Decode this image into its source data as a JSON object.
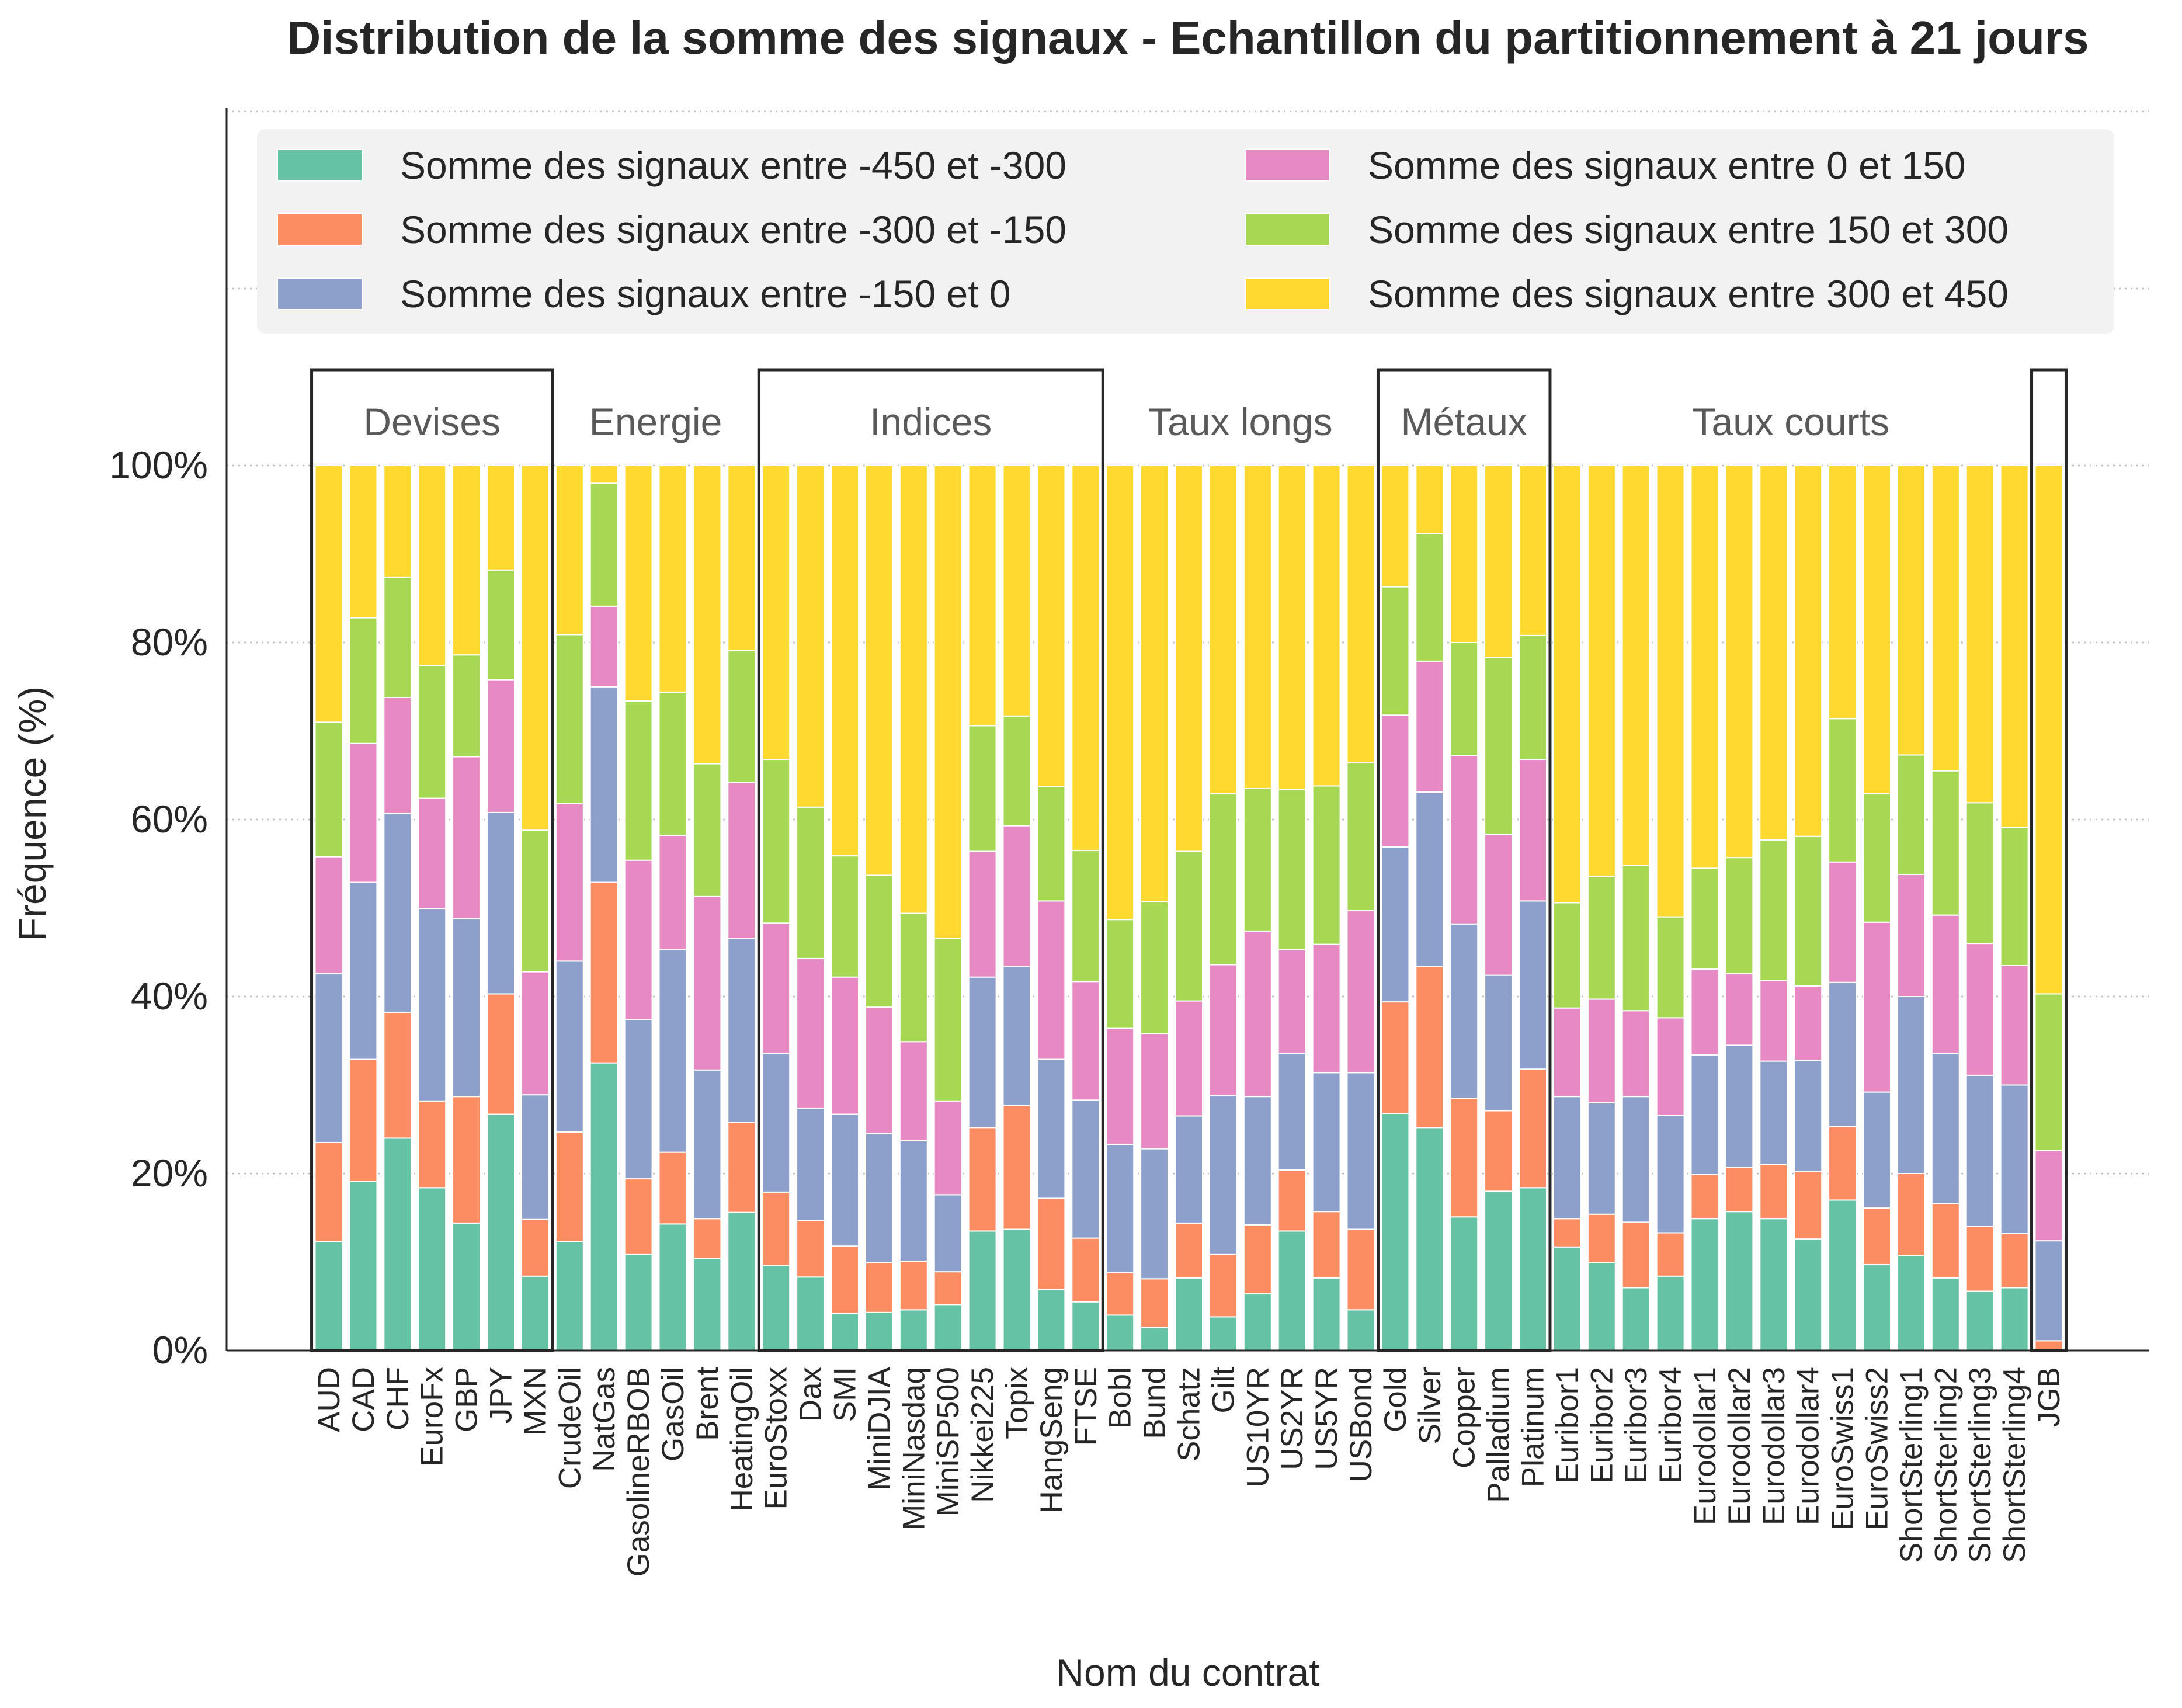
{
  "chart_data": {
    "type": "bar",
    "stacked": true,
    "title": "Distribution de la somme des signaux - Echantillon du partitionnement à 21 jours",
    "xlabel": "Nom du contrat",
    "ylabel": "Fréquence (%)",
    "ylim": [
      0,
      100
    ],
    "yticks": [
      "0%",
      "20%",
      "40%",
      "60%",
      "80%",
      "100%"
    ],
    "grid": "horizontal dotted",
    "legend": {
      "placement": "top",
      "columns": 2
    },
    "categories": [
      "AUD",
      "CAD",
      "CHF",
      "EuroFx",
      "GBP",
      "JPY",
      "MXN",
      "CrudeOil",
      "NatGas",
      "GasolineRBOB",
      "GasOil",
      "Brent",
      "HeatingOil",
      "EuroStoxx",
      "Dax",
      "SMI",
      "MiniDJIA",
      "MiniNasdaq",
      "MiniSP500",
      "Nikkei225",
      "Topix",
      "HangSeng",
      "FTSE",
      "Bobl",
      "Bund",
      "Schatz",
      "Gilt",
      "US10YR",
      "US2YR",
      "US5YR",
      "USBond",
      "Gold",
      "Silver",
      "Copper",
      "Palladium",
      "Platinum",
      "Euribor1",
      "Euribor2",
      "Euribor3",
      "Euribor4",
      "Eurodollar1",
      "Eurodollar2",
      "Eurodollar3",
      "Eurodollar4",
      "EuroSwiss1",
      "EuroSwiss2",
      "ShortSterling1",
      "ShortSterling2",
      "ShortSterling3",
      "ShortSterling4",
      "JGB"
    ],
    "groups": [
      {
        "label": "Devises",
        "start": 0,
        "end": 6,
        "boxed": true
      },
      {
        "label": "Energie",
        "start": 7,
        "end": 12,
        "boxed": false
      },
      {
        "label": "Indices",
        "start": 13,
        "end": 22,
        "boxed": true
      },
      {
        "label": "Taux longs",
        "start": 23,
        "end": 30,
        "boxed": false
      },
      {
        "label": "Métaux",
        "start": 31,
        "end": 35,
        "boxed": true
      },
      {
        "label": "Taux courts",
        "start": 36,
        "end": 49,
        "boxed": false
      },
      {
        "label": "",
        "start": 50,
        "end": 50,
        "boxed": true
      }
    ],
    "series": [
      {
        "name": "Somme des signaux entre -450 et -300",
        "color": "#66c2a5",
        "values": [
          12.3,
          19.1,
          24.0,
          18.4,
          14.4,
          26.7,
          8.4,
          12.3,
          32.5,
          10.9,
          14.3,
          10.4,
          15.6,
          9.6,
          8.3,
          4.2,
          4.3,
          4.6,
          5.2,
          13.5,
          13.7,
          6.9,
          5.5,
          4.0,
          2.6,
          8.2,
          3.8,
          6.4,
          13.5,
          8.2,
          4.6,
          26.8,
          25.2,
          15.1,
          18.0,
          18.4,
          11.7,
          9.9,
          7.1,
          8.4,
          14.9,
          15.7,
          14.9,
          12.6,
          17.0,
          9.7,
          10.7,
          8.2,
          6.7,
          7.1,
          0.0
        ]
      },
      {
        "name": "Somme des signaux entre -300 et -150",
        "color": "#fc8d62",
        "values": [
          11.2,
          13.8,
          14.2,
          9.8,
          14.3,
          13.6,
          6.4,
          12.4,
          20.4,
          8.5,
          8.1,
          4.5,
          10.2,
          8.3,
          6.4,
          7.6,
          5.6,
          5.5,
          3.7,
          11.7,
          14.0,
          10.3,
          7.2,
          4.8,
          5.5,
          6.2,
          7.1,
          7.8,
          6.9,
          7.5,
          9.1,
          12.6,
          18.2,
          13.4,
          9.1,
          13.4,
          3.2,
          5.5,
          7.4,
          4.9,
          5.0,
          5.0,
          6.1,
          7.6,
          8.3,
          6.4,
          9.3,
          8.4,
          7.3,
          6.1,
          1.1
        ]
      },
      {
        "name": "Somme des signaux entre -150 et 0",
        "color": "#8da0cb",
        "values": [
          19.1,
          20.0,
          22.5,
          21.7,
          20.1,
          20.5,
          14.1,
          19.3,
          22.1,
          18.0,
          22.9,
          16.8,
          20.8,
          15.7,
          12.7,
          14.9,
          14.6,
          13.6,
          8.7,
          17.0,
          15.7,
          15.7,
          15.6,
          14.5,
          14.7,
          12.1,
          17.9,
          14.5,
          13.2,
          15.7,
          17.7,
          17.5,
          19.7,
          19.7,
          15.3,
          19.0,
          13.8,
          12.6,
          14.2,
          13.3,
          13.5,
          13.8,
          11.7,
          12.6,
          16.3,
          13.1,
          20.0,
          17.0,
          17.1,
          16.8,
          11.3
        ]
      },
      {
        "name": "Somme des signaux entre 0 et 150",
        "color": "#e78ac3",
        "values": [
          13.2,
          15.7,
          13.1,
          12.5,
          18.3,
          15.0,
          13.9,
          17.8,
          9.1,
          18.0,
          12.9,
          19.6,
          17.6,
          14.7,
          16.9,
          15.5,
          14.3,
          11.2,
          10.6,
          14.2,
          15.9,
          17.9,
          13.4,
          13.1,
          13.0,
          13.0,
          14.8,
          18.7,
          11.7,
          14.5,
          18.3,
          14.9,
          14.8,
          19.0,
          15.9,
          16.0,
          10.0,
          11.7,
          9.7,
          11.0,
          9.7,
          8.1,
          9.1,
          8.4,
          13.6,
          19.2,
          13.8,
          15.6,
          14.9,
          13.5,
          10.2
        ]
      },
      {
        "name": "Somme des signaux entre 150 et 300",
        "color": "#a6d854",
        "values": [
          15.2,
          14.2,
          13.6,
          15.0,
          11.5,
          12.4,
          16.0,
          19.1,
          13.9,
          18.0,
          16.2,
          15.0,
          14.9,
          18.5,
          17.1,
          13.7,
          14.9,
          14.5,
          18.4,
          14.2,
          12.4,
          12.9,
          14.8,
          12.3,
          14.9,
          16.9,
          19.3,
          16.1,
          18.1,
          17.9,
          16.7,
          14.5,
          14.4,
          12.8,
          20.0,
          14.0,
          11.9,
          13.9,
          16.4,
          11.4,
          11.4,
          13.1,
          15.9,
          16.9,
          16.2,
          14.5,
          13.5,
          16.3,
          15.9,
          15.6,
          17.7
        ]
      },
      {
        "name": "Somme des signaux entre 300 et 450",
        "color": "#ffd92f",
        "values": [
          29.0,
          17.2,
          12.6,
          22.6,
          21.4,
          11.8,
          41.2,
          19.1,
          2.0,
          26.6,
          25.6,
          33.7,
          20.9,
          33.2,
          38.6,
          44.1,
          46.3,
          50.6,
          53.4,
          29.4,
          28.3,
          36.3,
          43.5,
          51.3,
          49.3,
          43.6,
          37.1,
          36.5,
          36.6,
          36.2,
          33.6,
          13.7,
          7.7,
          20.0,
          21.7,
          19.2,
          49.4,
          46.4,
          45.2,
          51.0,
          45.5,
          44.3,
          42.3,
          41.9,
          28.6,
          37.1,
          32.7,
          34.5,
          38.1,
          40.9,
          59.7
        ]
      }
    ]
  }
}
